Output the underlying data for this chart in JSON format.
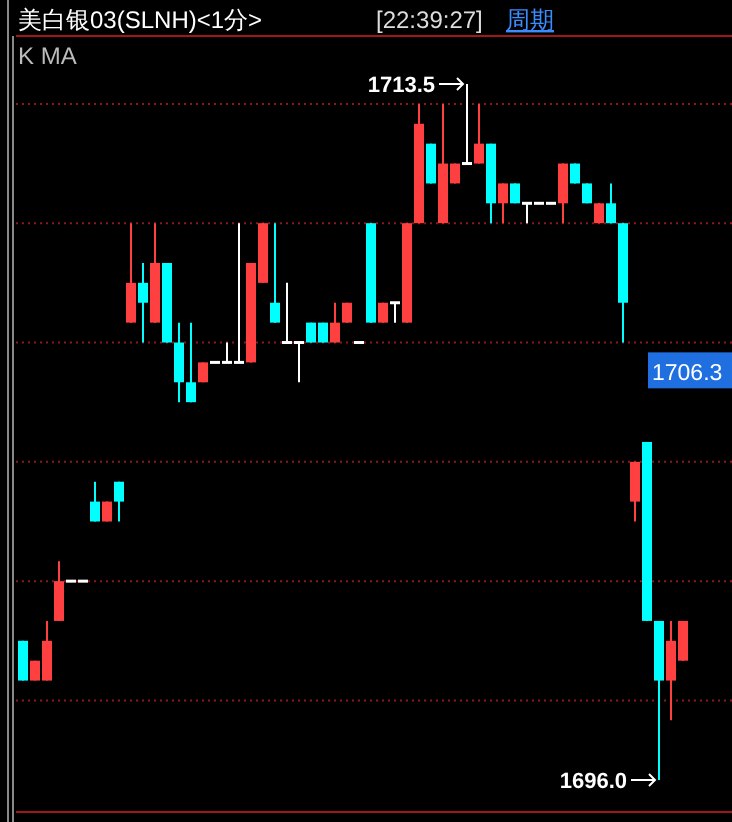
{
  "chart_data": {
    "type": "candlestick",
    "title": "美白银03(SLNH)<1分>",
    "subtitle": "[22:39:27]",
    "annotations": [
      "周期",
      "K MA",
      "1713.5",
      "1696.0",
      {
        "text": "1706.3",
        "y": 1706.3
      }
    ],
    "categories": [
      null,
      null,
      null,
      null,
      null,
      null,
      null,
      null,
      null,
      null,
      null,
      null,
      null,
      null,
      null,
      null,
      null,
      null,
      null,
      null,
      null,
      null,
      null,
      null,
      null,
      null,
      null,
      null,
      null,
      null,
      null,
      null,
      null,
      null,
      null,
      null,
      null,
      null,
      null,
      null,
      null,
      null,
      null,
      null,
      null,
      null,
      null,
      null,
      null,
      null,
      null,
      null,
      null,
      null,
      null,
      null
    ],
    "ohlc": [
      [
        1699.5,
        1699.5,
        1698.5,
        1698.5
      ],
      [
        1698.5,
        1699,
        1698.5,
        1699
      ],
      [
        1698.5,
        1700,
        1698.5,
        1699.5
      ],
      [
        1700,
        1701.5,
        1700,
        1701
      ],
      [
        1701,
        1701,
        1701,
        1701
      ],
      [
        1701,
        1701,
        1701,
        1701
      ],
      [
        1703,
        1703.5,
        1702.5,
        1702.5
      ],
      [
        1702.5,
        1703,
        1702.5,
        1703
      ],
      [
        1703.5,
        1703.5,
        1702.5,
        1703
      ],
      [
        1707.5,
        1710,
        1707.5,
        1708.5
      ],
      [
        1708.5,
        1709,
        1707,
        1708
      ],
      [
        1707.5,
        1710,
        1707.5,
        1709
      ],
      [
        1709,
        1709,
        1707,
        1707
      ],
      [
        1707,
        1707.5,
        1705.5,
        1706
      ],
      [
        1706,
        1707.5,
        1705.5,
        1705.5
      ],
      [
        1706,
        1706.5,
        1706,
        1706.5
      ],
      [
        1706.5,
        1706.5,
        1706.5,
        1706.5
      ],
      [
        1706.5,
        1707,
        1706.5,
        1706.5
      ],
      [
        1706.5,
        1710,
        1706.5,
        1706.5
      ],
      [
        1706.5,
        1709,
        1706.5,
        1709
      ],
      [
        1708.5,
        1710,
        1708.5,
        1710
      ],
      [
        1708,
        1710,
        1707.5,
        1707.5
      ],
      [
        1707,
        1708.5,
        1707,
        1707
      ],
      [
        1707,
        1707,
        1706,
        1707
      ],
      [
        1707.5,
        1707.5,
        1707,
        1707
      ],
      [
        1707.5,
        1707.5,
        1707,
        1707
      ],
      [
        1707,
        1708,
        1707,
        1707.5
      ],
      [
        1707.5,
        1708,
        1707.5,
        1708
      ],
      [
        1707,
        1707,
        1707,
        1707
      ],
      [
        1710,
        1710,
        1707.5,
        1707.5
      ],
      [
        1707.5,
        1708,
        1707.5,
        1708
      ],
      [
        1708,
        1708,
        1707.5,
        1708
      ],
      [
        1707.5,
        1710,
        1707.5,
        1710
      ],
      [
        1710,
        1713,
        1710,
        1712.5
      ],
      [
        1712,
        1712,
        1711,
        1711
      ],
      [
        1710,
        1713,
        1710,
        1711.5
      ],
      [
        1711,
        1711.5,
        1711,
        1711.5
      ],
      [
        1711.5,
        1713.5,
        1711.5,
        1711.5
      ],
      [
        1711.5,
        1713,
        1711.5,
        1712
      ],
      [
        1712,
        1712,
        1710,
        1710.5
      ],
      [
        1710.5,
        1711,
        1710,
        1711
      ],
      [
        1711,
        1711,
        1710.5,
        1710.5
      ],
      [
        1710.5,
        1710.5,
        1710,
        1710.5
      ],
      [
        1710.5,
        1710.5,
        1710.5,
        1710.5
      ],
      [
        1710.5,
        1710.5,
        1710.5,
        1710.5
      ],
      [
        1710.5,
        1711.5,
        1710,
        1711.5
      ],
      [
        1711.5,
        1711.5,
        1711,
        1711
      ],
      [
        1711,
        1711,
        1710.5,
        1710.5
      ],
      [
        1710,
        1710.5,
        1710,
        1710.5
      ],
      [
        1710.5,
        1711,
        1710,
        1710
      ],
      [
        1710,
        1710,
        1707,
        1708
      ],
      [
        1703,
        1704,
        1702.5,
        1704
      ],
      [
        1704.5,
        1704.5,
        1700,
        1700
      ],
      [
        1700,
        1700,
        1696,
        1698.5
      ],
      [
        1698.5,
        1700,
        1697.5,
        1699.5
      ],
      [
        1699,
        1700,
        1699,
        1700
      ]
    ],
    "colors": [
      "#00ffff",
      "#ff4040",
      "#ff4040",
      "#ff4040",
      "#ffffff",
      "#ffffff",
      "#00ffff",
      "#ff4040",
      "#00ffff",
      "#ff4040",
      "#00ffff",
      "#ff4040",
      "#00ffff",
      "#00ffff",
      "#00ffff",
      "#ff4040",
      "#ffffff",
      "#ffffff",
      "#ffffff",
      "#ff4040",
      "#ff4040",
      "#00ffff",
      "#ffffff",
      "#ffffff",
      "#00ffff",
      "#00ffff",
      "#ff4040",
      "#ff4040",
      "#ffffff",
      "#00ffff",
      "#ff4040",
      "#ffffff",
      "#ff4040",
      "#ff4040",
      "#00ffff",
      "#ff4040",
      "#ff4040",
      "#ffffff",
      "#ff4040",
      "#00ffff",
      "#ff4040",
      "#00ffff",
      "#ffffff",
      "#ffffff",
      "#ffffff",
      "#ff4040",
      "#00ffff",
      "#00ffff",
      "#ff4040",
      "#00ffff",
      "#00ffff",
      "#ff4040",
      "#00ffff",
      "#00ffff",
      "#ff4040",
      "#ff4040"
    ],
    "yticks": [
      {
        "value": 1713,
        "label": null
      },
      {
        "value": 1710,
        "label": null
      },
      {
        "value": 1707,
        "label": null
      },
      {
        "value": 1704,
        "label": null
      },
      {
        "value": 1701,
        "label": null
      },
      {
        "value": 1698,
        "label": null
      }
    ],
    "grid": "y"
  }
}
